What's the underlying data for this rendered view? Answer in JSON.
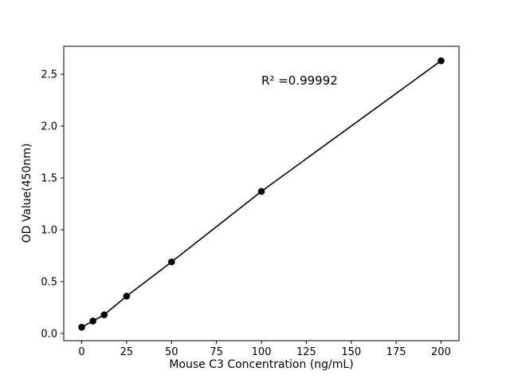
{
  "chart_data": {
    "type": "line",
    "title": "",
    "xlabel": "Mouse C3 Concentration (ng/mL)",
    "ylabel": "OD Value(450nm)",
    "annotation": "R² =0.99992",
    "annotation_xy": [
      100,
      2.4
    ],
    "x": [
      0,
      6.25,
      12.5,
      25,
      50,
      100,
      200
    ],
    "y": [
      0.06,
      0.12,
      0.18,
      0.36,
      0.69,
      1.37,
      2.63
    ],
    "xticks": [
      0,
      25,
      50,
      75,
      100,
      125,
      150,
      175,
      200
    ],
    "xtick_labels": [
      "0",
      "25",
      "50",
      "75",
      "100",
      "125",
      "150",
      "175",
      "200"
    ],
    "yticks": [
      0.0,
      0.5,
      1.0,
      1.5,
      2.0,
      2.5
    ],
    "ytick_labels": [
      "0.0",
      "0.5",
      "1.0",
      "1.5",
      "2.0",
      "2.5"
    ],
    "xlim": [
      -10,
      210
    ],
    "ylim": [
      -0.07,
      2.77
    ],
    "line_color": "#000000",
    "marker_color": "#000000",
    "grid": false,
    "legend": null
  }
}
